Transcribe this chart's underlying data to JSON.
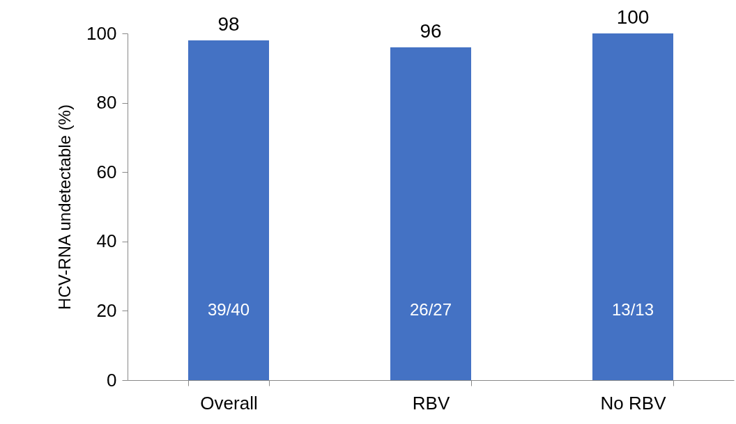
{
  "chart_data": {
    "type": "bar",
    "ylabel": "HCV-RNA undetectable (%)",
    "categories": [
      "Overall",
      "RBV",
      "No RBV"
    ],
    "values": [
      98,
      96,
      100
    ],
    "color": "#4472c4",
    "ylim": [
      0,
      100
    ],
    "yticks": [
      0,
      20,
      40,
      60,
      80,
      100
    ],
    "grid": false,
    "data_labels": true,
    "annotations": [
      "39/40",
      "26/27",
      "13/13"
    ]
  }
}
